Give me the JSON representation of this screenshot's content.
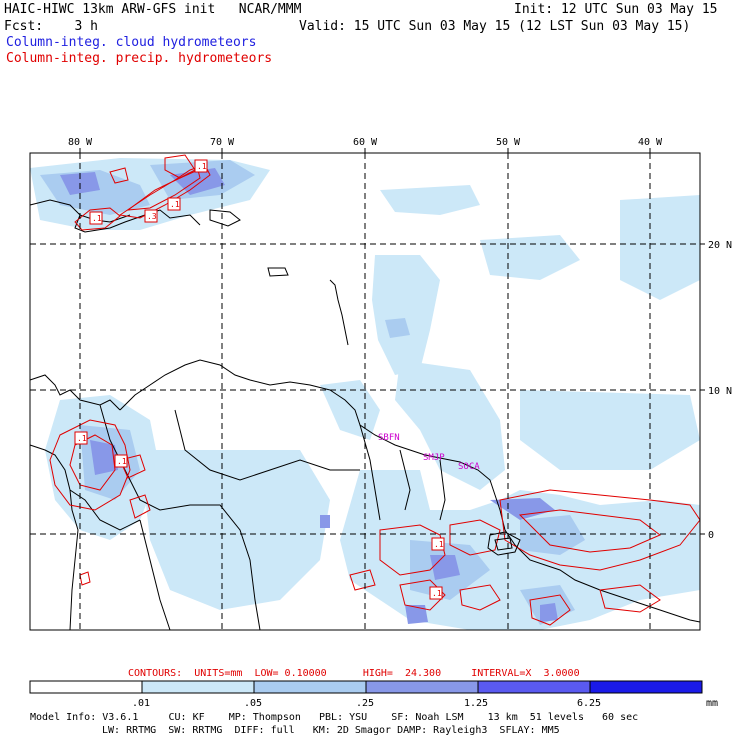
{
  "header": {
    "model_title": "HAIC-HIWC 13km ARW-GFS init   NCAR/MMM",
    "init": "Init: 12 UTC Sun 03 May 15",
    "fcst": "Fcst:    3 h",
    "valid": "Valid: 15 UTC Sun 03 May 15 (12 LST Sun 03 May 15)",
    "field_cloud": "Column-integ. cloud hydrometeors",
    "field_precip": "Column-integ. precip. hydrometeors",
    "cloud_color": "#2020e0",
    "precip_color": "#e00000"
  },
  "map": {
    "lon_labels": [
      "80 W",
      "70 W",
      "60 W",
      "50 W",
      "40 W"
    ],
    "lat_labels": [
      "20 N",
      "10 N",
      "0"
    ],
    "station_labels": [
      "SBFN",
      "SMJP",
      "SOCA"
    ],
    "contour_marks": [
      ".1",
      ".1",
      ".1",
      ".3",
      ".1",
      ".1",
      ".1",
      ".1"
    ],
    "contour_color": "#e00000",
    "station_color": "#cc00cc"
  },
  "contour_info": {
    "contours": "CONTOURS:",
    "units": "UNITS=mm",
    "low": "LOW= 0.10000",
    "high": "HIGH=  24.300",
    "interval": "INTERVAL=X  3.0000"
  },
  "colorbar": {
    "tick_labels": [
      ".01",
      ".05",
      ".25",
      "1.25",
      "6.25"
    ],
    "unit": "mm",
    "colors": [
      "#ffffff",
      "#cce8f8",
      "#aaccf0",
      "#8898e8",
      "#5a5af0",
      "#1a1ae8"
    ]
  },
  "footer": {
    "line1": [
      "Model Info: V3.6.1",
      "CU: KF",
      "MP: Thompson",
      "PBL: YSU",
      "SF: Noah LSM",
      "13 km",
      "51 levels",
      "60 sec"
    ],
    "line2": [
      "LW: RRTMG",
      "SW: RRTMG",
      "DIFF: full",
      "KM: 2D Smagor",
      "DAMP: Rayleigh3",
      "SFLAY: MM5"
    ]
  }
}
